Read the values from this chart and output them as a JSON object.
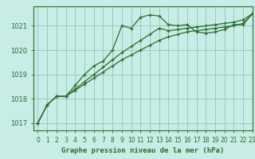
{
  "title": "Graphe pression niveau de la mer (hPa)",
  "bg_color": "#c8ece6",
  "grid_color": "#99ccbb",
  "line_color": "#2d6e2d",
  "xlim": [
    -0.5,
    23
  ],
  "ylim": [
    1016.7,
    1021.8
  ],
  "yticks": [
    1017,
    1018,
    1019,
    1020,
    1021
  ],
  "xticks": [
    0,
    1,
    2,
    3,
    4,
    5,
    6,
    7,
    8,
    9,
    10,
    11,
    12,
    13,
    14,
    15,
    16,
    17,
    18,
    19,
    20,
    21,
    22,
    23
  ],
  "series": [
    [
      1017.0,
      1017.75,
      1018.1,
      1018.1,
      1018.55,
      1019.0,
      1019.35,
      1019.55,
      1020.0,
      1021.0,
      1020.9,
      1021.35,
      1021.45,
      1021.4,
      1021.05,
      1021.0,
      1021.05,
      1020.75,
      1020.7,
      1020.75,
      1020.85,
      1021.05,
      1021.05,
      1021.5
    ],
    [
      1017.0,
      1017.75,
      1018.1,
      1018.1,
      1018.4,
      1018.7,
      1019.0,
      1019.3,
      1019.6,
      1019.9,
      1020.15,
      1020.4,
      1020.65,
      1020.9,
      1020.8,
      1020.85,
      1020.9,
      1020.95,
      1021.0,
      1021.05,
      1021.1,
      1021.15,
      1021.25,
      1021.5
    ],
    [
      1017.0,
      1017.75,
      1018.1,
      1018.1,
      1018.35,
      1018.6,
      1018.85,
      1019.1,
      1019.35,
      1019.6,
      1019.8,
      1020.0,
      1020.2,
      1020.4,
      1020.55,
      1020.65,
      1020.75,
      1020.8,
      1020.85,
      1020.9,
      1020.95,
      1021.0,
      1021.1,
      1021.5
    ]
  ]
}
